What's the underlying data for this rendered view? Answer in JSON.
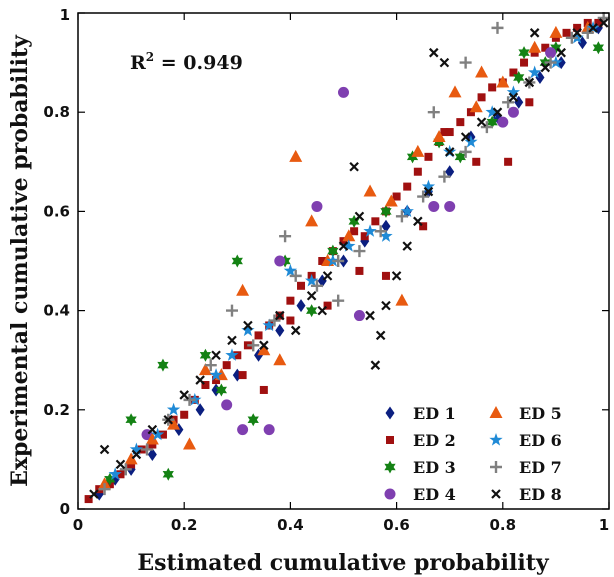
{
  "chart_data": {
    "type": "scatter",
    "title": "",
    "xlabel": "Estimated cumulative probability",
    "ylabel": "Experimental cumulative probability",
    "xlim": [
      0,
      1
    ],
    "ylim": [
      0,
      1
    ],
    "xticks": [
      "0",
      "0.2",
      "0.4",
      "0.6",
      "0.8",
      "1"
    ],
    "yticks": [
      "0",
      "0.2",
      "0.4",
      "0.6",
      "0.8",
      "1"
    ],
    "grid": false,
    "legend_position": "bottom-right",
    "annotation": {
      "base": "R",
      "sup": "2",
      "rest": " = 0.949"
    },
    "series": [
      {
        "name": "ED 1",
        "marker": "diamond",
        "color": "#0b1f80",
        "points": [
          [
            0.04,
            0.03
          ],
          [
            0.07,
            0.06
          ],
          [
            0.1,
            0.08
          ],
          [
            0.14,
            0.11
          ],
          [
            0.19,
            0.16
          ],
          [
            0.23,
            0.2
          ],
          [
            0.26,
            0.24
          ],
          [
            0.3,
            0.27
          ],
          [
            0.34,
            0.31
          ],
          [
            0.38,
            0.36
          ],
          [
            0.42,
            0.41
          ],
          [
            0.46,
            0.46
          ],
          [
            0.5,
            0.5
          ],
          [
            0.54,
            0.54
          ],
          [
            0.58,
            0.57
          ],
          [
            0.62,
            0.6
          ],
          [
            0.66,
            0.64
          ],
          [
            0.7,
            0.68
          ],
          [
            0.74,
            0.75
          ],
          [
            0.79,
            0.79
          ],
          [
            0.83,
            0.82
          ],
          [
            0.87,
            0.87
          ],
          [
            0.91,
            0.9
          ],
          [
            0.95,
            0.94
          ],
          [
            0.98,
            0.97
          ]
        ]
      },
      {
        "name": "ED 2",
        "marker": "square",
        "color": "#a01010",
        "points": [
          [
            0.02,
            0.02
          ],
          [
            0.04,
            0.04
          ],
          [
            0.06,
            0.05
          ],
          [
            0.08,
            0.07
          ],
          [
            0.1,
            0.09
          ],
          [
            0.12,
            0.12
          ],
          [
            0.14,
            0.13
          ],
          [
            0.16,
            0.15
          ],
          [
            0.18,
            0.18
          ],
          [
            0.2,
            0.19
          ],
          [
            0.22,
            0.22
          ],
          [
            0.24,
            0.25
          ],
          [
            0.26,
            0.26
          ],
          [
            0.28,
            0.29
          ],
          [
            0.3,
            0.31
          ],
          [
            0.32,
            0.33
          ],
          [
            0.34,
            0.35
          ],
          [
            0.36,
            0.37
          ],
          [
            0.38,
            0.39
          ],
          [
            0.4,
            0.42
          ],
          [
            0.42,
            0.45
          ],
          [
            0.44,
            0.47
          ],
          [
            0.46,
            0.5
          ],
          [
            0.48,
            0.52
          ],
          [
            0.5,
            0.54
          ],
          [
            0.52,
            0.56
          ],
          [
            0.54,
            0.55
          ],
          [
            0.56,
            0.58
          ],
          [
            0.58,
            0.6
          ],
          [
            0.6,
            0.63
          ],
          [
            0.62,
            0.65
          ],
          [
            0.64,
            0.68
          ],
          [
            0.66,
            0.71
          ],
          [
            0.68,
            0.74
          ],
          [
            0.7,
            0.76
          ],
          [
            0.72,
            0.78
          ],
          [
            0.74,
            0.8
          ],
          [
            0.76,
            0.83
          ],
          [
            0.78,
            0.85
          ],
          [
            0.8,
            0.86
          ],
          [
            0.82,
            0.88
          ],
          [
            0.84,
            0.9
          ],
          [
            0.86,
            0.92
          ],
          [
            0.88,
            0.93
          ],
          [
            0.9,
            0.95
          ],
          [
            0.92,
            0.96
          ],
          [
            0.94,
            0.97
          ],
          [
            0.96,
            0.98
          ],
          [
            0.98,
            0.98
          ],
          [
            0.31,
            0.27
          ],
          [
            0.4,
            0.38
          ],
          [
            0.53,
            0.48
          ],
          [
            0.65,
            0.57
          ],
          [
            0.75,
            0.7
          ],
          [
            0.81,
            0.7
          ],
          [
            0.58,
            0.47
          ],
          [
            0.47,
            0.41
          ],
          [
            0.69,
            0.76
          ],
          [
            0.85,
            0.82
          ],
          [
            0.35,
            0.24
          ]
        ]
      },
      {
        "name": "ED 3",
        "marker": "hexagram",
        "color": "#148214",
        "points": [
          [
            0.06,
            0.06
          ],
          [
            0.1,
            0.18
          ],
          [
            0.17,
            0.07
          ],
          [
            0.16,
            0.29
          ],
          [
            0.24,
            0.31
          ],
          [
            0.27,
            0.24
          ],
          [
            0.3,
            0.5
          ],
          [
            0.33,
            0.18
          ],
          [
            0.39,
            0.5
          ],
          [
            0.44,
            0.4
          ],
          [
            0.48,
            0.52
          ],
          [
            0.52,
            0.58
          ],
          [
            0.58,
            0.6
          ],
          [
            0.63,
            0.71
          ],
          [
            0.68,
            0.74
          ],
          [
            0.72,
            0.71
          ],
          [
            0.78,
            0.78
          ],
          [
            0.83,
            0.87
          ],
          [
            0.88,
            0.9
          ],
          [
            0.9,
            0.93
          ],
          [
            0.84,
            0.92
          ],
          [
            0.98,
            0.93
          ]
        ]
      },
      {
        "name": "ED 4",
        "marker": "circle",
        "color": "#7f3fb0",
        "points": [
          [
            0.13,
            0.15
          ],
          [
            0.28,
            0.21
          ],
          [
            0.31,
            0.16
          ],
          [
            0.36,
            0.16
          ],
          [
            0.38,
            0.5
          ],
          [
            0.45,
            0.61
          ],
          [
            0.53,
            0.39
          ],
          [
            0.5,
            0.84
          ],
          [
            0.67,
            0.61
          ],
          [
            0.7,
            0.61
          ],
          [
            0.8,
            0.78
          ],
          [
            0.82,
            0.8
          ],
          [
            0.89,
            0.92
          ]
        ]
      },
      {
        "name": "ED 5",
        "marker": "triangle",
        "color": "#e85a10",
        "points": [
          [
            0.05,
            0.05
          ],
          [
            0.1,
            0.1
          ],
          [
            0.14,
            0.14
          ],
          [
            0.18,
            0.17
          ],
          [
            0.21,
            0.13
          ],
          [
            0.24,
            0.28
          ],
          [
            0.27,
            0.27
          ],
          [
            0.31,
            0.44
          ],
          [
            0.35,
            0.32
          ],
          [
            0.38,
            0.3
          ],
          [
            0.41,
            0.71
          ],
          [
            0.44,
            0.58
          ],
          [
            0.47,
            0.5
          ],
          [
            0.51,
            0.55
          ],
          [
            0.55,
            0.64
          ],
          [
            0.59,
            0.62
          ],
          [
            0.61,
            0.42
          ],
          [
            0.64,
            0.72
          ],
          [
            0.68,
            0.75
          ],
          [
            0.71,
            0.84
          ],
          [
            0.76,
            0.88
          ],
          [
            0.8,
            0.86
          ],
          [
            0.86,
            0.93
          ],
          [
            0.9,
            0.96
          ],
          [
            0.96,
            0.97
          ],
          [
            0.75,
            0.81
          ]
        ]
      },
      {
        "name": "ED 6",
        "marker": "star",
        "color": "#1f8ad6",
        "points": [
          [
            0.07,
            0.07
          ],
          [
            0.11,
            0.12
          ],
          [
            0.15,
            0.15
          ],
          [
            0.18,
            0.2
          ],
          [
            0.22,
            0.22
          ],
          [
            0.26,
            0.27
          ],
          [
            0.29,
            0.31
          ],
          [
            0.32,
            0.36
          ],
          [
            0.36,
            0.37
          ],
          [
            0.4,
            0.48
          ],
          [
            0.44,
            0.46
          ],
          [
            0.48,
            0.5
          ],
          [
            0.51,
            0.53
          ],
          [
            0.55,
            0.56
          ],
          [
            0.58,
            0.55
          ],
          [
            0.62,
            0.6
          ],
          [
            0.66,
            0.65
          ],
          [
            0.7,
            0.72
          ],
          [
            0.74,
            0.74
          ],
          [
            0.78,
            0.8
          ],
          [
            0.82,
            0.84
          ],
          [
            0.86,
            0.88
          ],
          [
            0.9,
            0.9
          ],
          [
            0.94,
            0.95
          ],
          [
            0.97,
            0.97
          ]
        ]
      },
      {
        "name": "ED 7",
        "marker": "plus",
        "color": "#808080",
        "points": [
          [
            0.05,
            0.04
          ],
          [
            0.09,
            0.08
          ],
          [
            0.13,
            0.12
          ],
          [
            0.17,
            0.18
          ],
          [
            0.21,
            0.22
          ],
          [
            0.25,
            0.29
          ],
          [
            0.29,
            0.4
          ],
          [
            0.33,
            0.33
          ],
          [
            0.37,
            0.38
          ],
          [
            0.41,
            0.47
          ],
          [
            0.45,
            0.45
          ],
          [
            0.49,
            0.5
          ],
          [
            0.53,
            0.52
          ],
          [
            0.57,
            0.56
          ],
          [
            0.61,
            0.59
          ],
          [
            0.65,
            0.63
          ],
          [
            0.69,
            0.67
          ],
          [
            0.73,
            0.72
          ],
          [
            0.77,
            0.77
          ],
          [
            0.81,
            0.82
          ],
          [
            0.85,
            0.86
          ],
          [
            0.89,
            0.9
          ],
          [
            0.93,
            0.95
          ],
          [
            0.96,
            0.96
          ],
          [
            0.99,
            0.99
          ],
          [
            0.39,
            0.55
          ],
          [
            0.49,
            0.42
          ],
          [
            0.67,
            0.8
          ],
          [
            0.73,
            0.9
          ],
          [
            0.79,
            0.97
          ]
        ]
      },
      {
        "name": "ED 8",
        "marker": "x",
        "color": "#111111",
        "points": [
          [
            0.03,
            0.03
          ],
          [
            0.05,
            0.12
          ],
          [
            0.08,
            0.09
          ],
          [
            0.11,
            0.11
          ],
          [
            0.14,
            0.16
          ],
          [
            0.17,
            0.18
          ],
          [
            0.2,
            0.23
          ],
          [
            0.23,
            0.26
          ],
          [
            0.26,
            0.31
          ],
          [
            0.29,
            0.34
          ],
          [
            0.32,
            0.37
          ],
          [
            0.35,
            0.33
          ],
          [
            0.38,
            0.39
          ],
          [
            0.41,
            0.36
          ],
          [
            0.44,
            0.43
          ],
          [
            0.47,
            0.47
          ],
          [
            0.5,
            0.53
          ],
          [
            0.53,
            0.59
          ],
          [
            0.55,
            0.39
          ],
          [
            0.56,
            0.29
          ],
          [
            0.57,
            0.35
          ],
          [
            0.58,
            0.41
          ],
          [
            0.6,
            0.47
          ],
          [
            0.62,
            0.53
          ],
          [
            0.64,
            0.58
          ],
          [
            0.66,
            0.64
          ],
          [
            0.67,
            0.92
          ],
          [
            0.69,
            0.9
          ],
          [
            0.7,
            0.72
          ],
          [
            0.73,
            0.75
          ],
          [
            0.76,
            0.78
          ],
          [
            0.79,
            0.8
          ],
          [
            0.82,
            0.83
          ],
          [
            0.85,
            0.86
          ],
          [
            0.86,
            0.96
          ],
          [
            0.88,
            0.89
          ],
          [
            0.91,
            0.92
          ],
          [
            0.94,
            0.96
          ],
          [
            0.97,
            0.97
          ],
          [
            0.99,
            0.98
          ],
          [
            0.52,
            0.69
          ],
          [
            0.46,
            0.4
          ]
        ]
      }
    ]
  }
}
